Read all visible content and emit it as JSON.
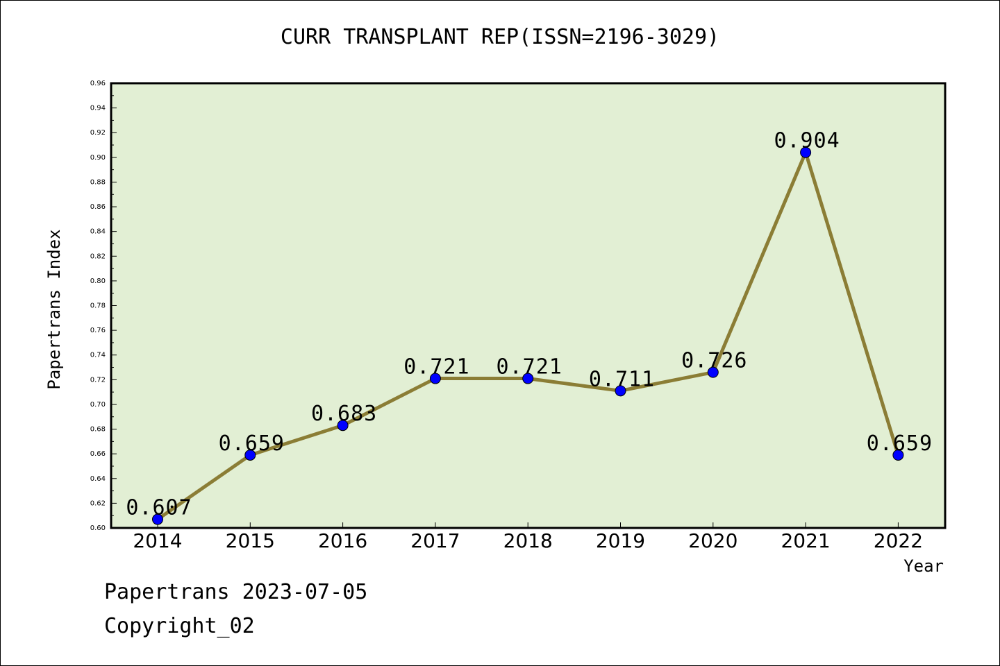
{
  "chart_data": {
    "type": "line",
    "title": "CURR TRANSPLANT REP(ISSN=2196-3029)",
    "xlabel": "Year",
    "ylabel": "Papertrans Index",
    "categories": [
      "2014",
      "2015",
      "2016",
      "2017",
      "2018",
      "2019",
      "2020",
      "2021",
      "2022"
    ],
    "series": [
      {
        "values": [
          0.607,
          0.659,
          0.683,
          0.721,
          0.721,
          0.711,
          0.726,
          0.904,
          0.659
        ]
      }
    ],
    "value_labels": [
      "0.607",
      "0.659",
      "0.683",
      "0.721",
      "0.721",
      "0.711",
      "0.726",
      "0.904",
      "0.659"
    ],
    "y_ticks": [
      "0.60",
      "0.62",
      "0.64",
      "0.66",
      "0.68",
      "0.70",
      "0.72",
      "0.74",
      "0.76",
      "0.78",
      "0.80",
      "0.82",
      "0.84",
      "0.86",
      "0.88",
      "0.90",
      "0.92",
      "0.94",
      "0.96"
    ],
    "ylim": [
      0.6,
      0.96
    ],
    "grid": false,
    "colors": {
      "plot_background": "#e2efd4",
      "line": "#8b7d35",
      "marker": "#0000ff"
    }
  },
  "footer": {
    "date_line": "Papertrans 2023-07-05",
    "copyright": "Copyright_02"
  }
}
